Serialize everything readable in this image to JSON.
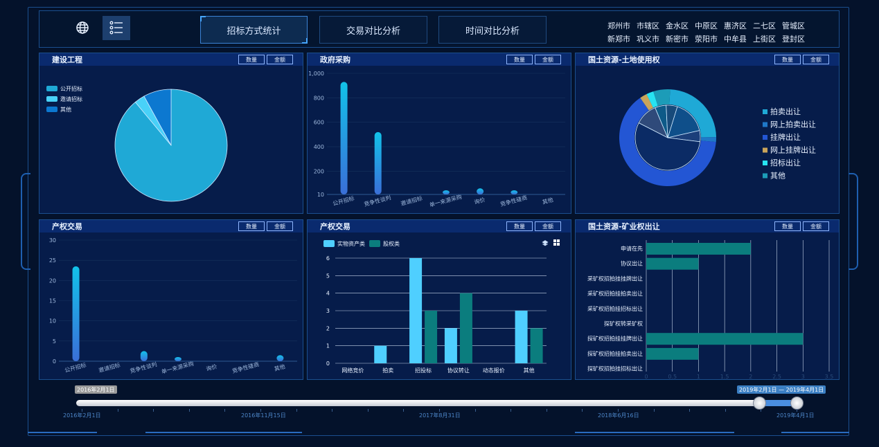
{
  "header": {
    "icons": {
      "globe": "globe-icon",
      "menu": "list-menu-icon"
    },
    "tabs": [
      {
        "label": "招标方式统计",
        "active": true
      },
      {
        "label": "交易对比分析",
        "active": false
      },
      {
        "label": "时间对比分析",
        "active": false
      }
    ],
    "districts_row1": [
      "郑州市",
      "市辖区",
      "金水区",
      "中原区",
      "惠济区",
      "二七区",
      "管城区"
    ],
    "districts_row2": [
      "新郑市",
      "巩义市",
      "新密市",
      "荥阳市",
      "中牟县",
      "上街区",
      "登封区"
    ]
  },
  "buttons": {
    "count": "数量",
    "amount": "金额"
  },
  "colors": {
    "background": "#04122b",
    "panel": "#061c4a",
    "panel_header": "#0a2a6e",
    "accent": "#2a6cc0",
    "bar_gradient_top": "#12c2e9",
    "bar_gradient_bottom": "#3a6fd8",
    "teal": "#0b7d7e",
    "light_blue": "#4fcfff"
  },
  "panels": [
    {
      "title": "建设工程"
    },
    {
      "title": "政府采购"
    },
    {
      "title": "国土资源-土地使用权"
    },
    {
      "title": "产权交易"
    },
    {
      "title": "产权交易"
    },
    {
      "title": "国土资源-矿业权出让"
    }
  ],
  "chart_data": [
    {
      "type": "pie",
      "legend": [
        "公开招标",
        "邀请招标",
        "其他"
      ],
      "colors": [
        "#1fa9d6",
        "#49d1f8",
        "#0c78d0"
      ],
      "values": [
        89,
        3,
        8
      ]
    },
    {
      "type": "bar",
      "categories": [
        "公开招标",
        "竞争性谈判",
        "邀请招标",
        "单一来源采购",
        "询价",
        "竞争性磋商",
        "其他"
      ],
      "values": [
        930,
        520,
        0,
        12,
        60,
        3,
        0
      ],
      "yticks": [
        "10",
        "200",
        "400",
        "600",
        "800",
        "1,000"
      ],
      "ylim": [
        10,
        1000
      ]
    },
    {
      "type": "pie",
      "legend": [
        "拍卖出让",
        "网上拍卖出让",
        "挂牌出让",
        "网上挂牌出让",
        "招标出让",
        "其他"
      ],
      "colors": [
        "#1fa9d6",
        "#1f78c8",
        "#2356d4",
        "#c9a45a",
        "#27e3f2",
        "#1c9cb8"
      ],
      "outer_values": [
        60,
        4,
        160,
        6,
        6,
        14
      ],
      "inner_values": [
        30,
        10,
        100,
        20,
        10,
        10
      ]
    },
    {
      "type": "bar",
      "categories": [
        "公开招标",
        "邀请招标",
        "竞争性谈判",
        "单一来源采购",
        "询价",
        "竞争性磋商",
        "其他"
      ],
      "values": [
        23.5,
        0,
        2.5,
        0.5,
        0,
        0,
        1.5
      ],
      "yticks": [
        "0",
        "5",
        "10",
        "15",
        "20",
        "25",
        "30"
      ],
      "ylim": [
        0,
        30
      ]
    },
    {
      "type": "bar",
      "categories": [
        "网络竞价",
        "拍卖",
        "招投标",
        "协议转让",
        "动态报价",
        "其他"
      ],
      "series": [
        {
          "name": "实物资产类",
          "values": [
            0,
            1,
            6,
            2,
            0,
            3
          ]
        },
        {
          "name": "股权类",
          "values": [
            0,
            0,
            3,
            4,
            0,
            2
          ]
        }
      ],
      "yticks": [
        "0",
        "1",
        "2",
        "3",
        "4",
        "5",
        "6"
      ],
      "ylim": [
        0,
        6
      ]
    },
    {
      "type": "bar",
      "orientation": "horizontal",
      "categories": [
        "申请在先",
        "协议出让",
        "采矿权招拍挂挂牌出让",
        "采矿权招拍挂拍卖出让",
        "采矿权招拍挂招标出让",
        "探矿权转采矿权",
        "探矿权招拍挂挂牌出让",
        "探矿权招拍挂拍卖出让",
        "探矿权招拍挂招标出让"
      ],
      "values": [
        2,
        1,
        0,
        0,
        0,
        0,
        3,
        1,
        0
      ],
      "xticks": [
        "0",
        "0.5",
        "1",
        "1.5",
        "2",
        "2.5",
        "3",
        "3.5"
      ],
      "xlim": [
        0,
        3.5
      ]
    }
  ],
  "timeline": {
    "start_tag": "2016年2月1日",
    "range_tag": "2019年2月1日 — 2019年4月1日",
    "labels": [
      "2016年2月1日",
      "2016年11月15日",
      "2017年8月31日",
      "2018年6月16日",
      "2019年4月1日"
    ]
  }
}
